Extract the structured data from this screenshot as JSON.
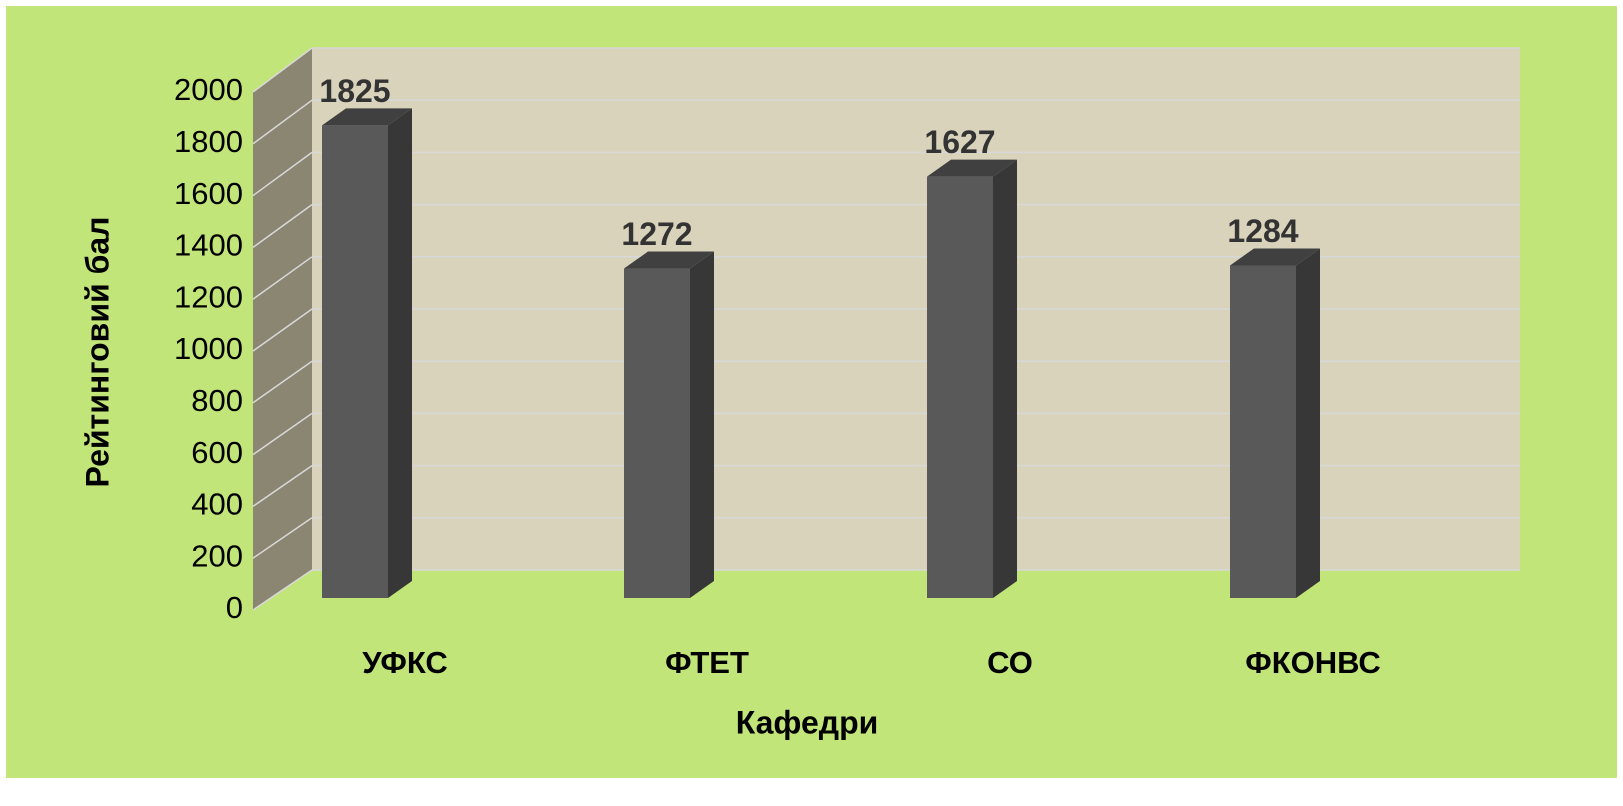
{
  "chart_data": {
    "type": "bar",
    "categories": [
      "УФКС",
      "ФТЕТ",
      "СО",
      "ФКОНВС"
    ],
    "values": [
      1825,
      1272,
      1627,
      1284
    ],
    "color": "#595959",
    "xlabel": "Кафедри",
    "ylabel": "Рейтинговий бал",
    "ylim": [
      0,
      2000
    ],
    "yticks": [
      0,
      200,
      400,
      600,
      800,
      1000,
      1200,
      1400,
      1600,
      1800,
      2000
    ],
    "grid": true
  }
}
